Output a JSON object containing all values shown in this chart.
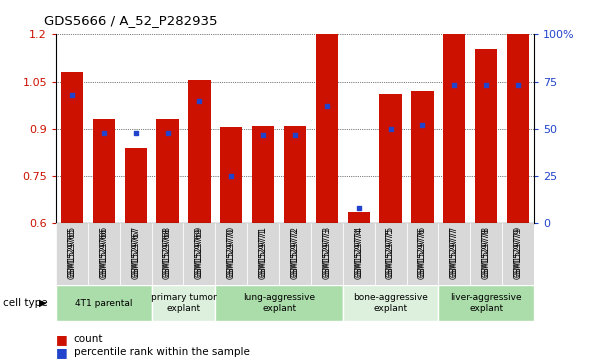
{
  "title": "GDS5666 / A_52_P282935",
  "samples": [
    "GSM1529765",
    "GSM1529766",
    "GSM1529767",
    "GSM1529768",
    "GSM1529769",
    "GSM1529770",
    "GSM1529771",
    "GSM1529772",
    "GSM1529773",
    "GSM1529774",
    "GSM1529775",
    "GSM1529776",
    "GSM1529777",
    "GSM1529778",
    "GSM1529779"
  ],
  "red_values": [
    1.08,
    0.93,
    0.84,
    0.93,
    1.055,
    0.905,
    0.91,
    0.91,
    1.2,
    0.635,
    1.01,
    1.02,
    1.2,
    1.155,
    1.2
  ],
  "blue_values_pct": [
    68,
    48,
    48,
    48,
    65,
    25,
    47,
    47,
    62,
    8,
    50,
    52,
    73,
    73,
    73
  ],
  "ylim_left": [
    0.6,
    1.2
  ],
  "ylim_right": [
    0,
    100
  ],
  "yticks_left": [
    0.6,
    0.75,
    0.9,
    1.05,
    1.2
  ],
  "yticks_right": [
    0,
    25,
    50,
    75,
    100
  ],
  "cell_types": [
    {
      "label": "4T1 parental",
      "start": 0,
      "end": 3,
      "color": "#aaddaa"
    },
    {
      "label": "primary tumor\nexplant",
      "start": 3,
      "end": 5,
      "color": "#ddf0dd"
    },
    {
      "label": "lung-aggressive\nexplant",
      "start": 5,
      "end": 9,
      "color": "#aaddaa"
    },
    {
      "label": "bone-aggressive\nexplant",
      "start": 9,
      "end": 12,
      "color": "#ddf0dd"
    },
    {
      "label": "liver-aggressive\nexplant",
      "start": 12,
      "end": 15,
      "color": "#aaddaa"
    }
  ],
  "bar_color": "#cc1100",
  "dot_color": "#2244cc",
  "sample_bg_color": "#d8d8d8",
  "plot_bg_color": "#ffffff",
  "cell_type_label": "cell type",
  "legend_count": "count",
  "legend_pct": "percentile rank within the sample",
  "bar_width": 0.7
}
